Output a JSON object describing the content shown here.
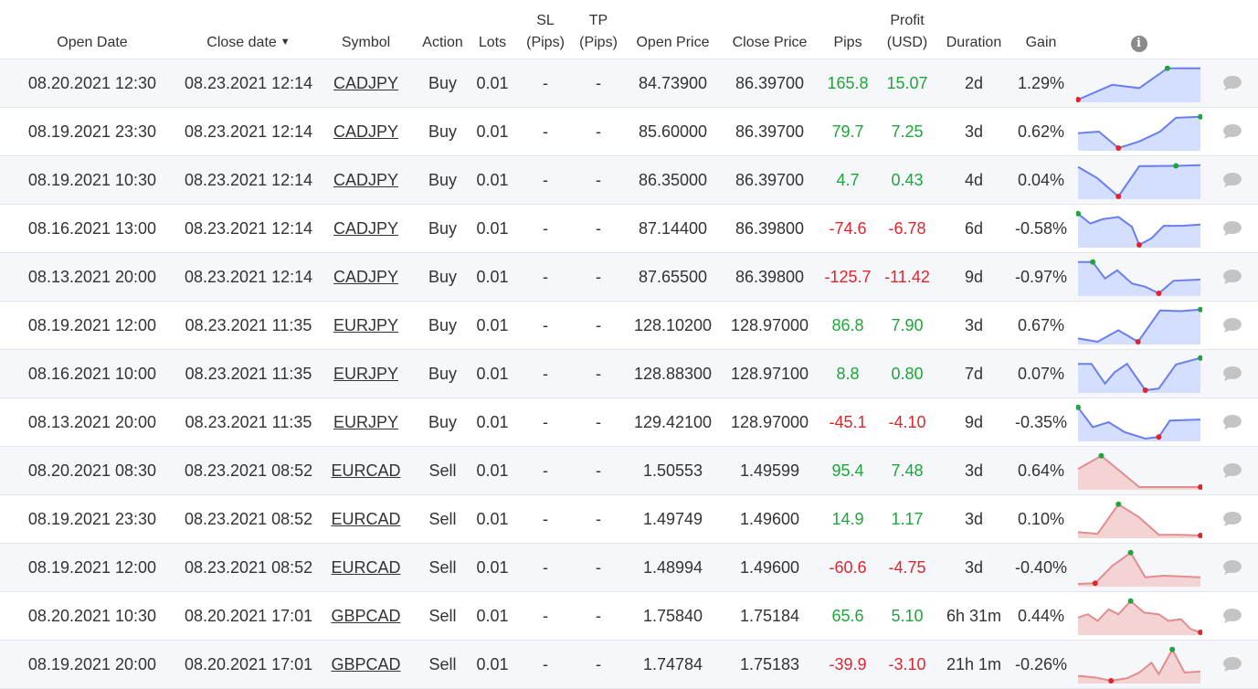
{
  "header": {
    "open_date": "Open Date",
    "close_date": "Close date",
    "sort_arrow": "▼",
    "symbol": "Symbol",
    "action": "Action",
    "lots": "Lots",
    "sl_line1": "SL",
    "sl_line2": "(Pips)",
    "tp_line1": "TP",
    "tp_line2": "(Pips)",
    "open_price": "Open Price",
    "close_price": "Close Price",
    "pips": "Pips",
    "profit_line1": "Profit",
    "profit_line2": "(USD)",
    "duration": "Duration",
    "gain": "Gain",
    "info_glyph": "i"
  },
  "colors": {
    "positive": "#1fa53a",
    "negative": "#e0262b",
    "buy_fill": "#d4defe",
    "buy_line": "#6a7ef0",
    "sell_fill": "#f3d3d4",
    "sell_line": "#e28d8f",
    "icon_gray": "#c4c4c4"
  },
  "icons": {
    "info": "info-icon",
    "comment": "speech-bubble-icon",
    "sort": "sort-desc-arrow"
  },
  "rows": [
    {
      "open_date": "08.20.2021 12:30",
      "close_date": "08.23.2021 12:14",
      "symbol": "CADJPY",
      "action": "Buy",
      "lots": "0.01",
      "sl": "-",
      "tp": "-",
      "open_price": "84.73900",
      "close_price": "86.39700",
      "pips": "165.8",
      "profit": "15.07",
      "duration": "2d",
      "gain": "1.29%",
      "positive": true,
      "spark": [
        [
          0,
          0
        ],
        [
          0.28,
          0.45
        ],
        [
          0.5,
          0.35
        ],
        [
          0.73,
          0.95
        ],
        [
          1,
          0.95
        ]
      ],
      "max_i": 3,
      "min_i": 0
    },
    {
      "open_date": "08.19.2021 23:30",
      "close_date": "08.23.2021 12:14",
      "symbol": "CADJPY",
      "action": "Buy",
      "lots": "0.01",
      "sl": "-",
      "tp": "-",
      "open_price": "85.60000",
      "close_price": "86.39700",
      "pips": "79.7",
      "profit": "7.25",
      "duration": "3d",
      "gain": "0.62%",
      "positive": true,
      "spark": [
        [
          0,
          0.45
        ],
        [
          0.17,
          0.5
        ],
        [
          0.33,
          0.0
        ],
        [
          0.5,
          0.2
        ],
        [
          0.67,
          0.5
        ],
        [
          0.8,
          0.92
        ],
        [
          1,
          0.95
        ]
      ],
      "max_i": 6,
      "min_i": 2
    },
    {
      "open_date": "08.19.2021 10:30",
      "close_date": "08.23.2021 12:14",
      "symbol": "CADJPY",
      "action": "Buy",
      "lots": "0.01",
      "sl": "-",
      "tp": "-",
      "open_price": "86.35000",
      "close_price": "86.39700",
      "pips": "4.7",
      "profit": "0.43",
      "duration": "4d",
      "gain": "0.04%",
      "positive": true,
      "spark": [
        [
          0,
          0.9
        ],
        [
          0.16,
          0.55
        ],
        [
          0.33,
          0.0
        ],
        [
          0.5,
          0.92
        ],
        [
          0.8,
          0.93
        ],
        [
          1,
          0.95
        ]
      ],
      "max_i": 4,
      "min_i": 2
    },
    {
      "open_date": "08.16.2021 13:00",
      "close_date": "08.23.2021 12:14",
      "symbol": "CADJPY",
      "action": "Buy",
      "lots": "0.01",
      "sl": "-",
      "tp": "-",
      "open_price": "87.14400",
      "close_price": "86.39800",
      "pips": "-74.6",
      "profit": "-6.78",
      "duration": "6d",
      "gain": "-0.58%",
      "positive": false,
      "spark": [
        [
          0,
          0.95
        ],
        [
          0.1,
          0.65
        ],
        [
          0.2,
          0.78
        ],
        [
          0.33,
          0.85
        ],
        [
          0.44,
          0.55
        ],
        [
          0.5,
          0.0
        ],
        [
          0.6,
          0.2
        ],
        [
          0.7,
          0.58
        ],
        [
          0.85,
          0.58
        ],
        [
          1,
          0.62
        ]
      ],
      "max_i": 0,
      "min_i": 5
    },
    {
      "open_date": "08.13.2021 20:00",
      "close_date": "08.23.2021 12:14",
      "symbol": "CADJPY",
      "action": "Buy",
      "lots": "0.01",
      "sl": "-",
      "tp": "-",
      "open_price": "87.65500",
      "close_price": "86.39800",
      "pips": "-125.7",
      "profit": "-11.42",
      "duration": "9d",
      "gain": "-0.97%",
      "positive": false,
      "spark": [
        [
          0,
          0.95
        ],
        [
          0.12,
          0.95
        ],
        [
          0.22,
          0.45
        ],
        [
          0.32,
          0.7
        ],
        [
          0.44,
          0.3
        ],
        [
          0.55,
          0.2
        ],
        [
          0.66,
          0.0
        ],
        [
          0.78,
          0.38
        ],
        [
          1,
          0.42
        ]
      ],
      "max_i": 1,
      "min_i": 6
    },
    {
      "open_date": "08.19.2021 12:00",
      "close_date": "08.23.2021 11:35",
      "symbol": "EURJPY",
      "action": "Buy",
      "lots": "0.01",
      "sl": "-",
      "tp": "-",
      "open_price": "128.10200",
      "close_price": "128.97000",
      "pips": "86.8",
      "profit": "7.90",
      "duration": "3d",
      "gain": "0.67%",
      "positive": true,
      "spark": [
        [
          0,
          0.1
        ],
        [
          0.16,
          0.0
        ],
        [
          0.33,
          0.35
        ],
        [
          0.49,
          0.0
        ],
        [
          0.67,
          0.95
        ],
        [
          0.84,
          0.93
        ],
        [
          1,
          0.98
        ]
      ],
      "max_i": 6,
      "min_i": 3
    },
    {
      "open_date": "08.16.2021 10:00",
      "close_date": "08.23.2021 11:35",
      "symbol": "EURJPY",
      "action": "Buy",
      "lots": "0.01",
      "sl": "-",
      "tp": "-",
      "open_price": "128.88300",
      "close_price": "128.97100",
      "pips": "8.8",
      "profit": "0.80",
      "duration": "7d",
      "gain": "0.07%",
      "positive": true,
      "spark": [
        [
          0,
          0.8
        ],
        [
          0.11,
          0.8
        ],
        [
          0.22,
          0.2
        ],
        [
          0.3,
          0.55
        ],
        [
          0.4,
          0.8
        ],
        [
          0.55,
          0.0
        ],
        [
          0.66,
          0.05
        ],
        [
          0.8,
          0.78
        ],
        [
          1,
          0.98
        ]
      ],
      "max_i": 8,
      "min_i": 5
    },
    {
      "open_date": "08.13.2021 20:00",
      "close_date": "08.23.2021 11:35",
      "symbol": "EURJPY",
      "action": "Buy",
      "lots": "0.01",
      "sl": "-",
      "tp": "-",
      "open_price": "129.42100",
      "close_price": "128.97000",
      "pips": "-45.1",
      "profit": "-4.10",
      "duration": "9d",
      "gain": "-0.35%",
      "positive": false,
      "spark": [
        [
          0,
          0.95
        ],
        [
          0.12,
          0.35
        ],
        [
          0.25,
          0.5
        ],
        [
          0.38,
          0.2
        ],
        [
          0.55,
          0.0
        ],
        [
          0.66,
          0.05
        ],
        [
          0.75,
          0.55
        ],
        [
          1,
          0.58
        ]
      ],
      "max_i": 0,
      "min_i": 5
    },
    {
      "open_date": "08.20.2021 08:30",
      "close_date": "08.23.2021 08:52",
      "symbol": "EURCAD",
      "action": "Sell",
      "lots": "0.01",
      "sl": "-",
      "tp": "-",
      "open_price": "1.50553",
      "close_price": "1.49599",
      "pips": "95.4",
      "profit": "7.48",
      "duration": "3d",
      "gain": "0.64%",
      "positive": true,
      "spark": [
        [
          0,
          0.55
        ],
        [
          0.19,
          0.95
        ],
        [
          0.5,
          0.0
        ],
        [
          0.75,
          0.0
        ],
        [
          1,
          0.0
        ]
      ],
      "max_i": 1,
      "min_i": 4
    },
    {
      "open_date": "08.19.2021 23:30",
      "close_date": "08.23.2021 08:52",
      "symbol": "EURCAD",
      "action": "Sell",
      "lots": "0.01",
      "sl": "-",
      "tp": "-",
      "open_price": "1.49749",
      "close_price": "1.49600",
      "pips": "14.9",
      "profit": "1.17",
      "duration": "3d",
      "gain": "0.10%",
      "positive": true,
      "spark": [
        [
          0,
          0.1
        ],
        [
          0.16,
          0.05
        ],
        [
          0.33,
          0.95
        ],
        [
          0.5,
          0.55
        ],
        [
          0.66,
          0.02
        ],
        [
          0.83,
          0.02
        ],
        [
          1,
          0.0
        ]
      ],
      "max_i": 2,
      "min_i": 6
    },
    {
      "open_date": "08.19.2021 12:00",
      "close_date": "08.23.2021 08:52",
      "symbol": "EURCAD",
      "action": "Sell",
      "lots": "0.01",
      "sl": "-",
      "tp": "-",
      "open_price": "1.48994",
      "close_price": "1.49600",
      "pips": "-60.6",
      "profit": "-4.75",
      "duration": "3d",
      "gain": "-0.40%",
      "positive": false,
      "spark": [
        [
          0,
          0.0
        ],
        [
          0.14,
          0.02
        ],
        [
          0.28,
          0.55
        ],
        [
          0.43,
          0.95
        ],
        [
          0.55,
          0.2
        ],
        [
          0.7,
          0.25
        ],
        [
          1,
          0.2
        ]
      ],
      "max_i": 3,
      "min_i": 1
    },
    {
      "open_date": "08.20.2021 10:30",
      "close_date": "08.20.2021 17:01",
      "symbol": "GBPCAD",
      "action": "Sell",
      "lots": "0.01",
      "sl": "-",
      "tp": "-",
      "open_price": "1.75840",
      "close_price": "1.75184",
      "pips": "65.6",
      "profit": "5.10",
      "duration": "6h 31m",
      "gain": "0.44%",
      "positive": true,
      "spark": [
        [
          0,
          0.45
        ],
        [
          0.08,
          0.55
        ],
        [
          0.16,
          0.35
        ],
        [
          0.25,
          0.7
        ],
        [
          0.33,
          0.55
        ],
        [
          0.43,
          0.95
        ],
        [
          0.54,
          0.6
        ],
        [
          0.66,
          0.55
        ],
        [
          0.74,
          0.35
        ],
        [
          0.84,
          0.4
        ],
        [
          0.92,
          0.1
        ],
        [
          1,
          0.0
        ]
      ],
      "max_i": 5,
      "min_i": 11
    },
    {
      "open_date": "08.19.2021 20:00",
      "close_date": "08.20.2021 17:01",
      "symbol": "GBPCAD",
      "action": "Sell",
      "lots": "0.01",
      "sl": "-",
      "tp": "-",
      "open_price": "1.74784",
      "close_price": "1.75183",
      "pips": "-39.9",
      "profit": "-3.10",
      "duration": "21h 1m",
      "gain": "-0.26%",
      "positive": false,
      "spark": [
        [
          0,
          0.15
        ],
        [
          0.14,
          0.1
        ],
        [
          0.27,
          0.0
        ],
        [
          0.4,
          0.08
        ],
        [
          0.5,
          0.25
        ],
        [
          0.6,
          0.55
        ],
        [
          0.66,
          0.2
        ],
        [
          0.77,
          0.95
        ],
        [
          0.87,
          0.25
        ],
        [
          1,
          0.28
        ]
      ],
      "max_i": 7,
      "min_i": 2
    }
  ]
}
